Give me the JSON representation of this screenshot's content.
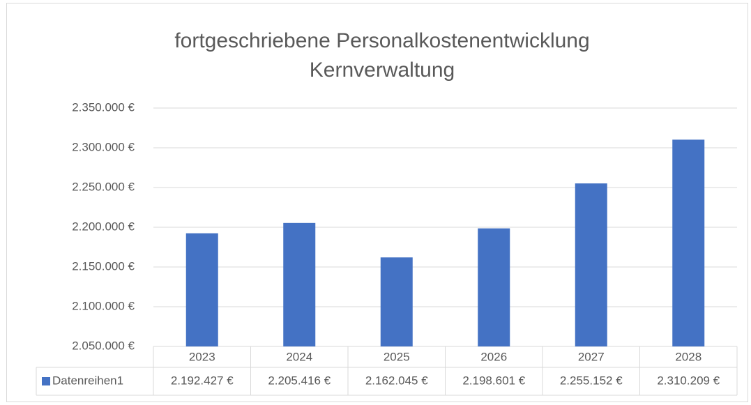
{
  "chart_data": {
    "type": "bar",
    "title": "fortgeschriebene Personalkostenentwicklung Kernverwaltung",
    "categories": [
      "2023",
      "2024",
      "2025",
      "2026",
      "2027",
      "2028"
    ],
    "series": [
      {
        "name": "Datenreihen1",
        "color": "#4472c4",
        "values": [
          2192427,
          2205416,
          2162045,
          2198601,
          2255152,
          2310209
        ],
        "value_labels": [
          "2.192.427 €",
          "2.205.416 €",
          "2.162.045 €",
          "2.198.601 €",
          "2.255.152 €",
          "2.310.209 €"
        ]
      }
    ],
    "ylim": [
      2050000,
      2350000
    ],
    "yticks": [
      {
        "value": 2050000,
        "label": "2.050.000 €"
      },
      {
        "value": 2100000,
        "label": "2.100.000 €"
      },
      {
        "value": 2150000,
        "label": "2.150.000 €"
      },
      {
        "value": 2200000,
        "label": "2.200.000 €"
      },
      {
        "value": 2250000,
        "label": "2.250.000 €"
      },
      {
        "value": 2300000,
        "label": "2.300.000 €"
      },
      {
        "value": 2350000,
        "label": "2.350.000 €"
      }
    ],
    "grid": true
  }
}
